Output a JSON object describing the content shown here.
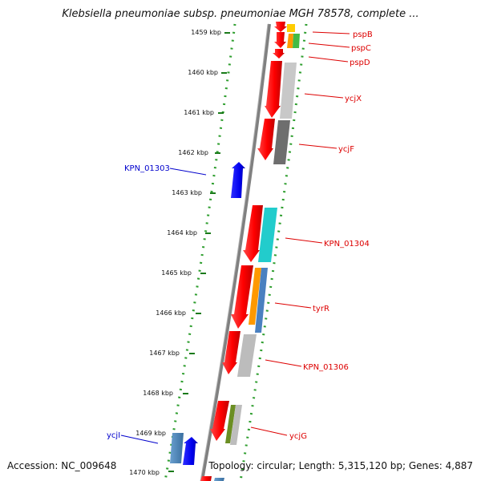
{
  "title": "Klebsiella pneumoniae subsp. pneumoniae MGH 78578, complete ...",
  "footer": {
    "accession": "Accession: NC_009648",
    "topology": "Topology: circular; Length: 5,315,120 bp; Genes: 4,887"
  },
  "colors": {
    "backbone": "#808080",
    "dots": "#2e9e2e",
    "forward_label": "#0000cc",
    "reverse_label": "#dd0000"
  },
  "ticks": [
    "1459 kbp",
    "1460 kbp",
    "1461 kbp",
    "1462 kbp",
    "1463 kbp",
    "1464 kbp",
    "1465 kbp",
    "1466 kbp",
    "1467 kbp",
    "1468 kbp",
    "1469 kbp",
    "1470 kbp"
  ],
  "gene_labels": {
    "pspB": "pspB",
    "pspC": "pspC",
    "pspD": "pspD",
    "ycjX": "ycjX",
    "ycjF": "ycjF",
    "KPN_01303": "KPN_01303",
    "KPN_01304": "KPN_01304",
    "tyrR": "tyrR",
    "KPN_01306": "KPN_01306",
    "ycjG": "ycjG",
    "ycjI": "ycjI"
  }
}
